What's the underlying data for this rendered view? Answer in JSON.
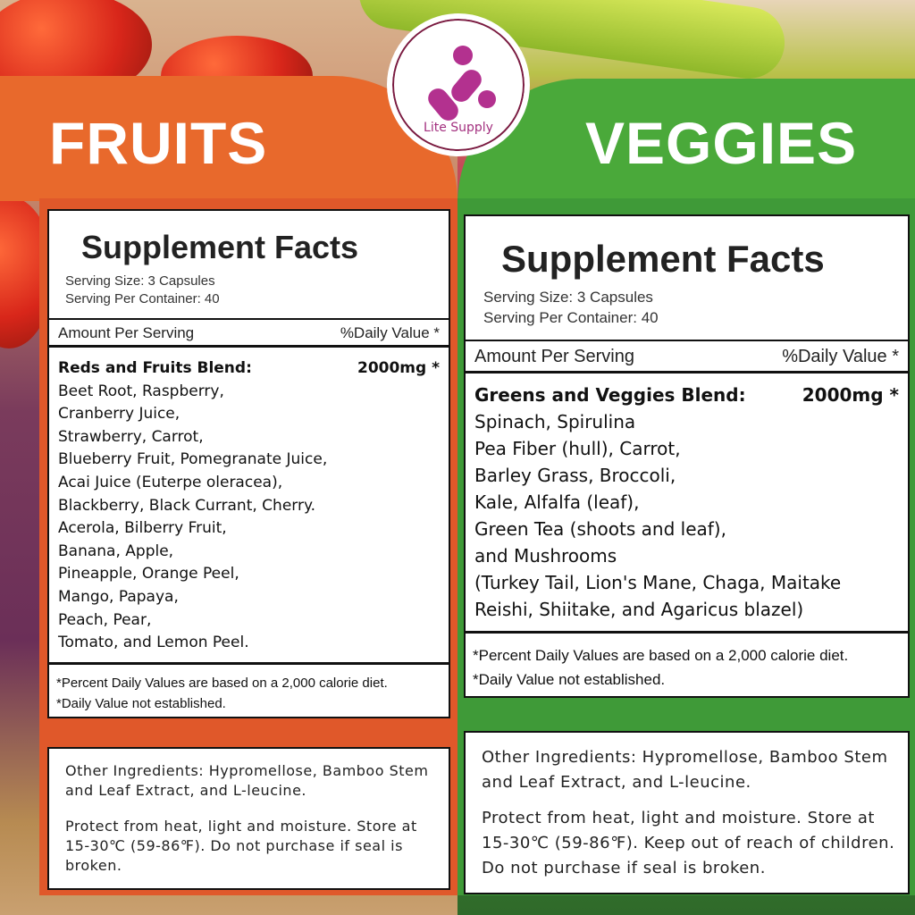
{
  "brand": {
    "name": "Lite Supply",
    "color": "#b3318f"
  },
  "colors": {
    "fruits": "#e8692c",
    "veggies": "#4aa93a"
  },
  "fruits": {
    "title": "FRUITS",
    "facts_title": "Supplement Facts",
    "serving_size": "Serving Size: 3 Capsules",
    "servings": "Serving Per Container: 40",
    "amount_label": "Amount Per Serving",
    "dv_label": "%Daily Value *",
    "blend_name": "Reds and Fruits Blend:",
    "blend_amount": "2000mg *",
    "ingredients": [
      "Beet Root, Raspberry,",
      "Cranberry Juice,",
      "Strawberry, Carrot,",
      "Blueberry Fruit, Pomegranate Juice,",
      "Acai Juice (Euterpe oleracea),",
      "Blackberry, Black Currant, Cherry.",
      "Acerola, Bilberry Fruit,",
      "Banana, Apple,",
      "Pineapple, Orange Peel,",
      "Mango, Papaya,",
      "Peach, Pear,",
      "Tomato, and Lemon Peel."
    ],
    "note1": "*Percent Daily Values are based on a 2,000 calorie diet.",
    "note2": "*Daily Value not established.",
    "other": "Other Ingredients:  Hypromellose, Bamboo Stem  and Leaf Extract, and L-leucine.",
    "storage": "Protect from heat, light and moisture. Store at 15-30℃ (59-86℉). Do not purchase if seal is broken."
  },
  "veggies": {
    "title": "VEGGIES",
    "facts_title": "Supplement Facts",
    "serving_size": "Serving Size: 3 Capsules",
    "servings": "Serving Per Container: 40",
    "amount_label": "Amount Per Serving",
    "dv_label": "%Daily Value *",
    "blend_name": "Greens and Veggies Blend:",
    "blend_amount": "2000mg *",
    "ingredients": [
      "Spinach, Spirulina",
      "Pea Fiber (hull), Carrot,",
      "Barley Grass, Broccoli,",
      "Kale, Alfalfa (leaf),",
      "Green Tea (shoots and leaf),",
      "and Mushrooms",
      "(Turkey Tail, Lion's Mane, Chaga, Maitake",
      "Reishi, Shiitake, and Agaricus blazel)"
    ],
    "note1": "*Percent Daily Values are based on a 2,000 calorie diet.",
    "note2": "*Daily Value not established.",
    "other": "Other Ingredients:  Hypromellose, Bamboo Stem  and Leaf Extract, and L-leucine.",
    "storage": "Protect from heat, light and moisture. Store at  15-30℃ (59-86℉). Keep out of reach of children. Do not purchase if seal is broken."
  }
}
